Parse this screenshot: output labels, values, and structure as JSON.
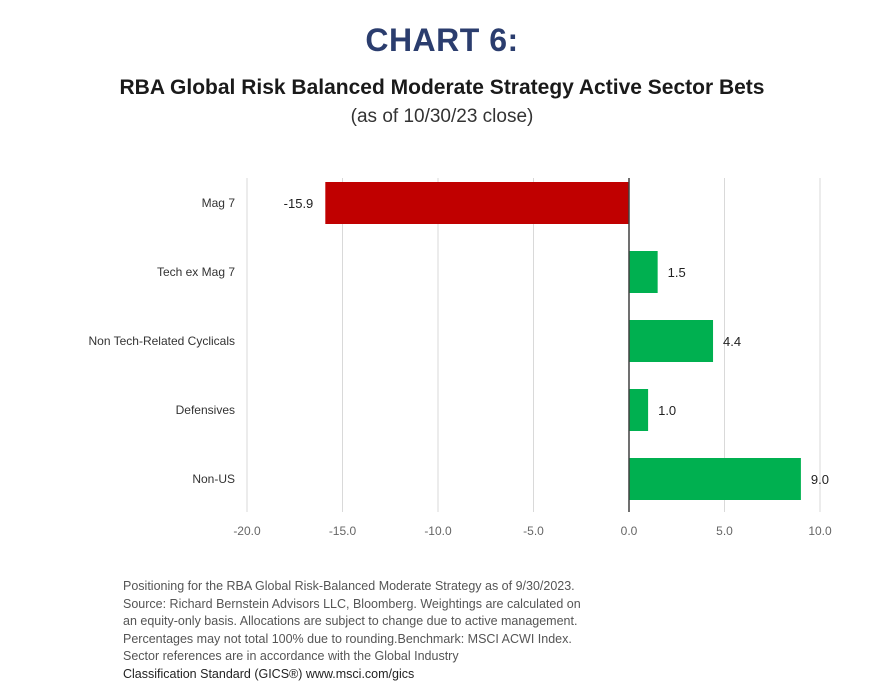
{
  "heading": "CHART 6:",
  "chart_data": {
    "type": "bar",
    "orientation": "horizontal",
    "title": "RBA Global Risk Balanced Moderate Strategy Active Sector Bets",
    "subtitle": "(as of 10/30/23 close)",
    "categories": [
      "Mag 7",
      "Tech ex Mag 7",
      "Non Tech-Related Cyclicals",
      "Defensives",
      "Non-US"
    ],
    "values": [
      -15.9,
      1.5,
      4.4,
      1.0,
      9.0
    ],
    "value_labels": [
      "-15.9",
      "1.5",
      "4.4",
      "1.0",
      "9.0"
    ],
    "xlim": [
      -20,
      10
    ],
    "xticks": [
      -20,
      -15,
      -10,
      -5,
      0,
      5,
      10
    ],
    "xtick_labels": [
      "-20.0",
      "-15.0",
      "-10.0",
      "-5.0",
      "0.0",
      "5.0",
      "10.0"
    ],
    "xlabel": "",
    "ylabel": "",
    "grid": true,
    "legend": "none",
    "colors": {
      "negative": "#c00000",
      "positive": "#00b050",
      "grid": "#d9d9d9",
      "zero_line": "#404040"
    }
  },
  "footnote": [
    "Positioning for the RBA Global Risk-Balanced Moderate Strategy as of 9/30/2023.",
    "Source: Richard Bernstein Advisors LLC, Bloomberg. Weightings are calculated on",
    "an equity-only basis. Allocations are subject to change due to active management.",
    "Percentages may not total 100% due to rounding.Benchmark: MSCI ACWI Index.",
    "Sector references are in accordance with the Global Industry",
    "Classification Standard (GICS®) www.msci.com/gics"
  ]
}
